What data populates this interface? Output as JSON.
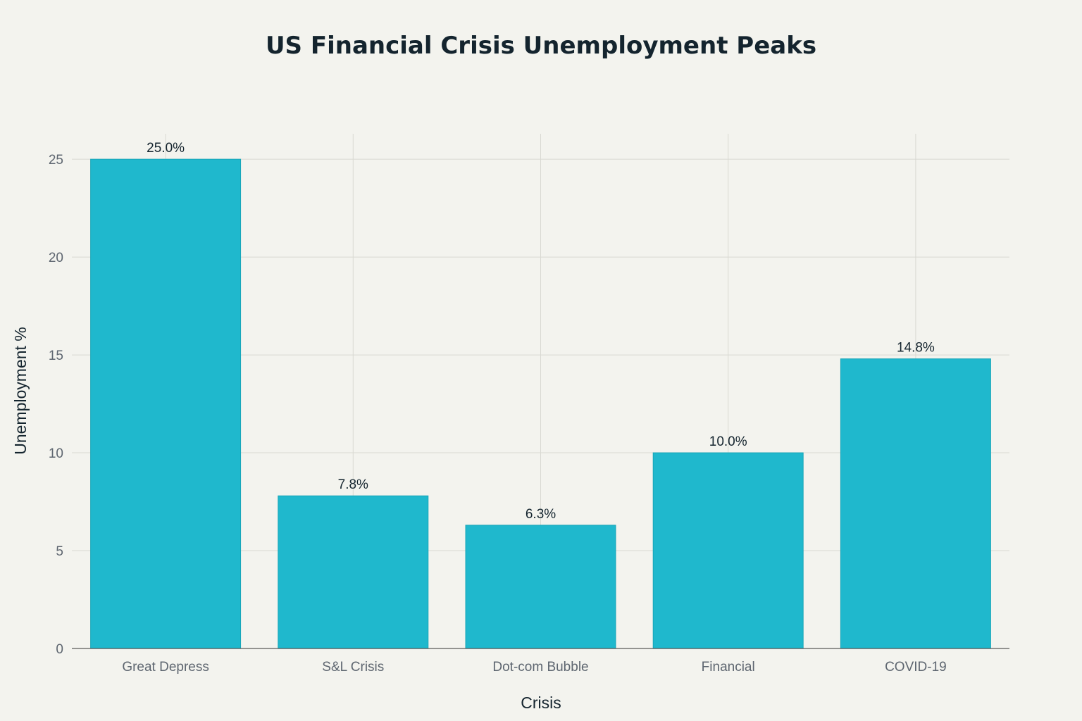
{
  "chart_data": {
    "type": "bar",
    "title": "US Financial Crisis Unemployment Peaks",
    "xlabel": "Crisis",
    "ylabel": "Unemployment %",
    "categories": [
      "Great Depress",
      "S&L Crisis",
      "Dot-com Bubble",
      "Financial",
      "COVID-19"
    ],
    "values": [
      25.0,
      7.8,
      6.3,
      10.0,
      14.8
    ],
    "data_labels": [
      "25.0%",
      "7.8%",
      "6.3%",
      "10.0%",
      "14.8%"
    ],
    "ylim": [
      0,
      26.3
    ],
    "yticks": [
      0,
      5,
      10,
      15,
      20,
      25
    ],
    "grid": true,
    "legend": "none",
    "colors": {
      "bar": "#1fb8cd",
      "background": "#f3f3ee",
      "text": "#14242e"
    }
  }
}
